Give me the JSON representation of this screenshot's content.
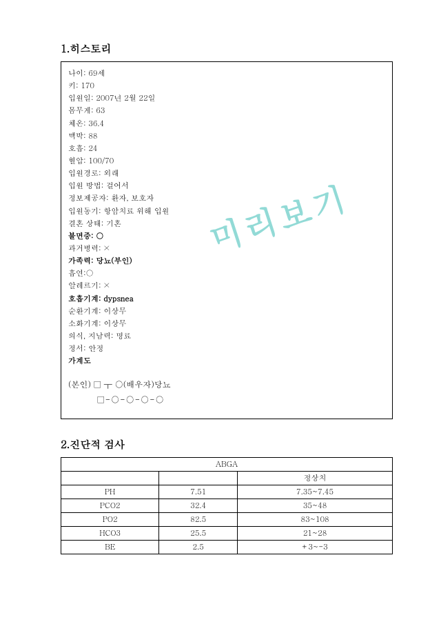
{
  "watermark": "미리보기",
  "section1": {
    "title": "1.히스토리",
    "lines": [
      {
        "text": "나이: 69세",
        "bold": false
      },
      {
        "text": "키: 170",
        "bold": false
      },
      {
        "text": "입원일: 2007년 2월 22일",
        "bold": false
      },
      {
        "text": "몸무게: 63",
        "bold": false
      },
      {
        "text": "체온: 36.4",
        "bold": false
      },
      {
        "text": "맥박: 88",
        "bold": false
      },
      {
        "text": "호흡: 24",
        "bold": false
      },
      {
        "text": "혈압: 100/70",
        "bold": false
      },
      {
        "text": "입원경로: 외래",
        "bold": false
      },
      {
        "text": "입원 방법: 걸어서",
        "bold": false
      },
      {
        "text": "정보제공자: 환자, 보호자",
        "bold": false
      },
      {
        "text": "입원동기: 항암치료 위해 입원",
        "bold": false
      },
      {
        "text": "결혼 상태: 기혼",
        "bold": false
      },
      {
        "text": "불면증: ○",
        "bold": true
      },
      {
        "text": "과거병력: ×",
        "bold": false
      },
      {
        "text": "가족력: 당뇨(부인)",
        "bold": true
      },
      {
        "text": "흡연:○",
        "bold": false
      },
      {
        "text": "알레르기: ×",
        "bold": false
      },
      {
        "text": "호흡기계: dypsnea",
        "bold": true
      },
      {
        "text": "순환기계: 이상무",
        "bold": false
      },
      {
        "text": "소화기계: 이상무",
        "bold": false
      },
      {
        "text": "의식, 지남력: 명료",
        "bold": false
      },
      {
        "text": "정서: 안정",
        "bold": false
      },
      {
        "text": "가계도",
        "bold": true
      }
    ],
    "pedigree": {
      "line1": "(본인)  □ ┬  ○(배우자)당뇨",
      "line2": "□-○-○-○-○"
    }
  },
  "section2": {
    "title": "2.진단적 검사",
    "table": {
      "header": "ABGA",
      "subheader_right": "정상치",
      "rows": [
        {
          "name": "PH",
          "value": "7.51",
          "normal": "7.35~7.45"
        },
        {
          "name": "PCO2",
          "value": "32.4",
          "normal": "35~48"
        },
        {
          "name": "PO2",
          "value": "82.5",
          "normal": "83~108"
        },
        {
          "name": "HCO3",
          "value": "25.5",
          "normal": "21~28"
        },
        {
          "name": "BE",
          "value": "2.5",
          "normal": "+3~-3"
        }
      ]
    }
  }
}
